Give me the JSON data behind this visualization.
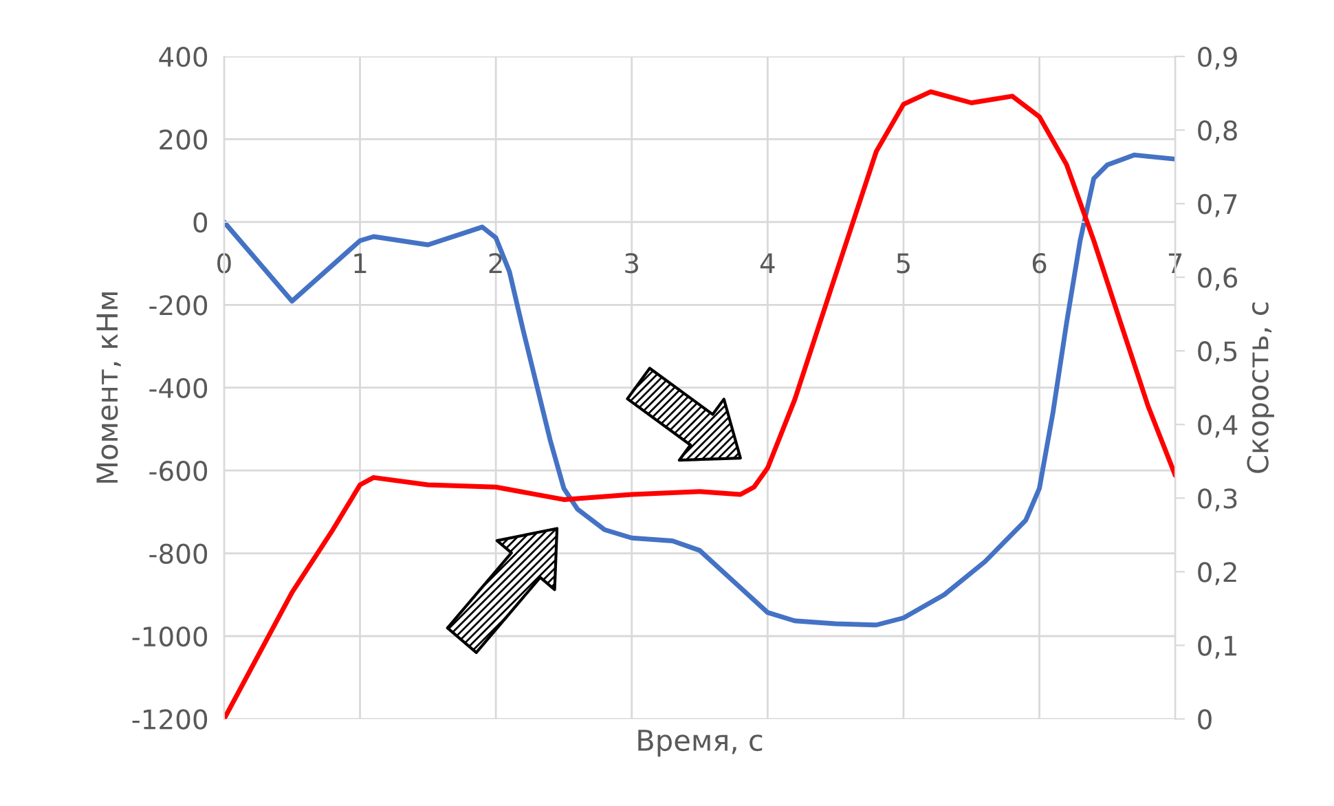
{
  "chart_data": {
    "type": "line",
    "xlabel": "Время, с",
    "ylabel": "Момент, кНм",
    "y2label": "Скорость, с",
    "xlim": [
      0,
      7
    ],
    "xticks": [
      0,
      1,
      2,
      3,
      4,
      5,
      6,
      7
    ],
    "ylim": [
      -1200,
      400
    ],
    "yticks": [
      -1200,
      -1000,
      -800,
      -600,
      -400,
      -200,
      0,
      200,
      400
    ],
    "y2lim": [
      0,
      0.9
    ],
    "y2ticks": [
      0,
      {
        "value": 0.1,
        "label": "0,1"
      },
      {
        "value": 0.2,
        "label": "0,2"
      },
      {
        "value": 0.3,
        "label": "0,3"
      },
      {
        "value": 0.4,
        "label": "0,4"
      },
      {
        "value": 0.5,
        "label": "0,5"
      },
      {
        "value": 0.6,
        "label": "0,6"
      },
      {
        "value": 0.7,
        "label": "0,7"
      },
      {
        "value": 0.8,
        "label": "0,8"
      },
      {
        "value": 0.9,
        "label": "0,9"
      }
    ],
    "grid": true,
    "marker": "none",
    "line_style": "solid",
    "series": [
      {
        "color": "#4472c4",
        "x": [
          0,
          0.5,
          1,
          1.1,
          1.5,
          1.9,
          2.0,
          2.1,
          2.2,
          2.4,
          2.5,
          2.6,
          2.8,
          3.0,
          3.3,
          3.5,
          3.7,
          4.0,
          4.2,
          4.5,
          4.8,
          5.0,
          5.3,
          5.6,
          5.9,
          6.0,
          6.1,
          6.2,
          6.3,
          6.4,
          6.5,
          6.7,
          7.0
        ],
        "values": [
          0,
          -191,
          -45,
          -35,
          -55,
          -12,
          -38,
          -120,
          -260,
          -527,
          -643,
          -693,
          -743,
          -763,
          -770,
          -793,
          -853,
          -943,
          -963,
          -970,
          -973,
          -956,
          -900,
          -820,
          -720,
          -643,
          -460,
          -244,
          -45,
          105,
          138,
          162,
          152
        ]
      },
      {
        "color": "#ff0000",
        "axis": "y2",
        "x": [
          0,
          0.5,
          0.8,
          1.0,
          1.1,
          1.5,
          2.0,
          2.5,
          3.0,
          3.5,
          3.8,
          3.9,
          4.0,
          4.2,
          4.5,
          4.8,
          5.0,
          5.2,
          5.5,
          5.8,
          6.0,
          6.2,
          6.4,
          6.6,
          6.8,
          7.0
        ],
        "values": [
          0,
          0.172,
          0.257,
          0.318,
          0.328,
          0.318,
          0.315,
          0.298,
          0.305,
          0.309,
          0.305,
          0.315,
          0.341,
          0.434,
          0.603,
          0.771,
          0.835,
          0.852,
          0.837,
          0.846,
          0.818,
          0.753,
          0.65,
          0.537,
          0.425,
          0.331
        ]
      }
    ]
  }
}
